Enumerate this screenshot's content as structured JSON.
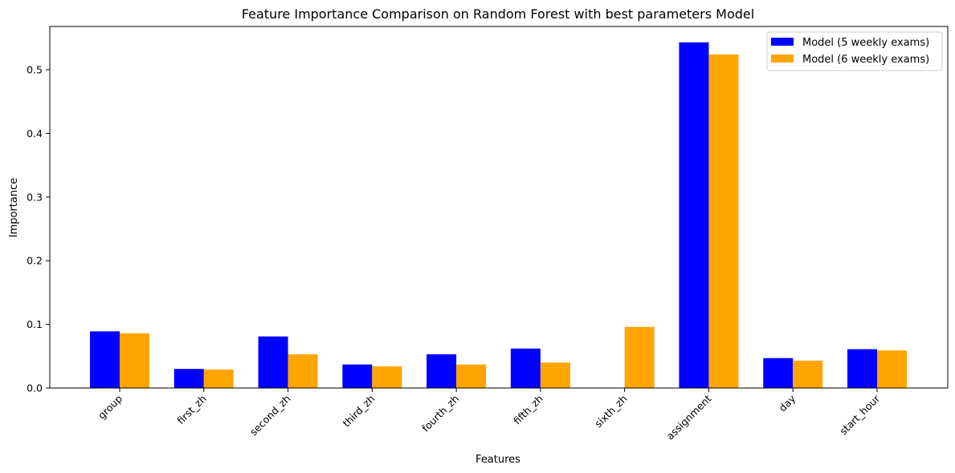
{
  "chart_data": {
    "type": "bar",
    "title": "Feature Importance Comparison on Random Forest with best parameters Model",
    "xlabel": "Features",
    "ylabel": "Importance",
    "categories": [
      "group",
      "first_zh",
      "second_zh",
      "third_zh",
      "fourth_zh",
      "fifth_zh",
      "sixth_zh",
      "assignment",
      "day",
      "start_hour"
    ],
    "series": [
      {
        "name": "Model (5 weekly exams)",
        "color": "#0000ff",
        "values": [
          0.089,
          0.03,
          0.081,
          0.037,
          0.053,
          0.062,
          0.0,
          0.543,
          0.047,
          0.061
        ]
      },
      {
        "name": "Model (6 weekly exams)",
        "color": "#ffa500",
        "values": [
          0.086,
          0.029,
          0.053,
          0.034,
          0.037,
          0.04,
          0.096,
          0.524,
          0.043,
          0.059
        ]
      }
    ],
    "ylim": [
      0,
      0.568
    ],
    "yticks": [
      "0.0",
      "0.1",
      "0.2",
      "0.3",
      "0.4",
      "0.5"
    ],
    "grid": false,
    "legend": "top-right"
  }
}
